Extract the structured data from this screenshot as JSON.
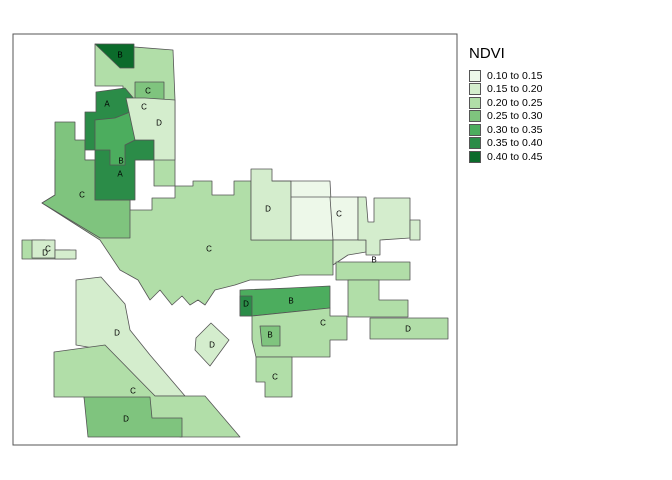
{
  "map": {
    "legend": {
      "title": "NDVI",
      "classes": [
        {
          "label": "0.10 to 0.15",
          "color": "#edf8e9"
        },
        {
          "label": "0.15 to 0.20",
          "color": "#d4edcd"
        },
        {
          "label": "0.20 to 0.25",
          "color": "#b1dea8"
        },
        {
          "label": "0.25 to 0.30",
          "color": "#7fc47e"
        },
        {
          "label": "0.30 to 0.35",
          "color": "#4cad5e"
        },
        {
          "label": "0.35 to 0.40",
          "color": "#2b8c48"
        },
        {
          "label": "0.40 to 0.45",
          "color": "#0b6b2b"
        }
      ]
    },
    "region_labels": [
      "B",
      "C",
      "A",
      "C",
      "D",
      "B",
      "A",
      "C",
      "D",
      "C",
      "C",
      "C",
      "D",
      "B",
      "D",
      "B",
      "B",
      "C",
      "D",
      "D",
      "D",
      "C",
      "C",
      "D"
    ]
  }
}
